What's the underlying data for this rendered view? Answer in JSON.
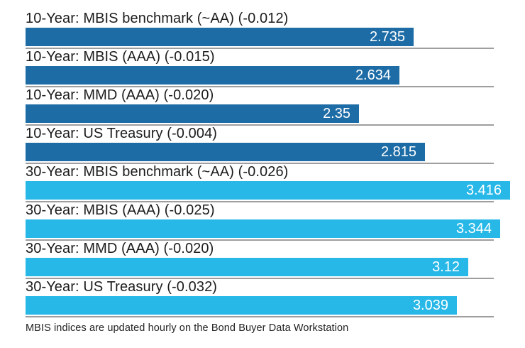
{
  "chart_data": {
    "type": "bar",
    "orientation": "horizontal",
    "title": "",
    "xlabel": "",
    "ylabel": "",
    "xlim": [
      0,
      3.3
    ],
    "grid": "baseline-under-each-bar",
    "legend_position": "none",
    "categories": [
      "10-Year: MBIS benchmark (~AA) (-0.012)",
      "10-Year: MBIS (AAA) (-0.015)",
      "10-Year: MMD (AAA) (-0.020)",
      "10-Year: US Treasury (-0.004)",
      "30-Year: MBIS benchmark (~AA) (-0.026)",
      "30-Year: MBIS (AAA) (-0.025)",
      "30-Year: MMD (AAA) (-0.020)",
      "30-Year: US Treasury (-0.032)"
    ],
    "values": [
      2.735,
      2.634,
      2.35,
      2.815,
      3.416,
      3.344,
      3.12,
      3.039
    ],
    "value_labels": [
      "2.735",
      "2.634",
      "2.35",
      "2.815",
      "3.416",
      "3.344",
      "3.12",
      "3.039"
    ],
    "groups": [
      "10-year",
      "10-year",
      "10-year",
      "10-year",
      "30-year",
      "30-year",
      "30-year",
      "30-year"
    ]
  },
  "colors": {
    "ten_year_bar": "#1e6ca6",
    "thirty_year_bar": "#27b8e8",
    "baseline": "#9e9e9e",
    "value_text": "#ffffff",
    "label_text": "#1c1c1c",
    "footer_text": "#222222",
    "background": "#ffffff"
  },
  "footer": {
    "text": "MBIS indices are updated hourly on the Bond Buyer Data Workstation"
  }
}
